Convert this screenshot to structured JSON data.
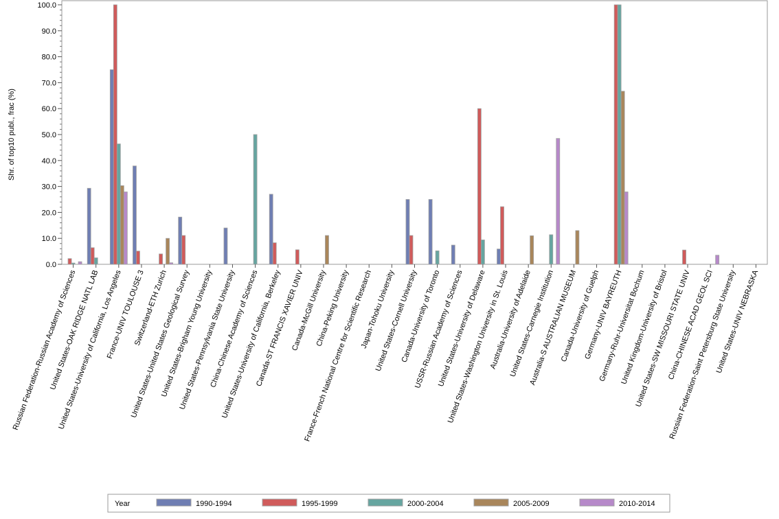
{
  "chart_data": {
    "type": "bar",
    "title": "",
    "xlabel": "",
    "ylabel": "Shr. of top10 publ., frac (%)",
    "ylim": [
      0,
      100
    ],
    "yticks": [
      "0.0",
      "10.0",
      "20.0",
      "30.0",
      "40.0",
      "50.0",
      "60.0",
      "70.0",
      "80.0",
      "90.0",
      "100.0"
    ],
    "grid": false,
    "legend_title": "Year",
    "legend_position": "bottom",
    "categories": [
      "Russian Federation-Russian Academy of Sciences",
      "United States-OAK RIDGE NATL LAB",
      "United States-University of California, Los Angeles",
      "France-UNIV TOULOUSE 3",
      "Switzerland-ETH Zurich",
      "United States-United States Geological Survey",
      "United States-Brigham Young University",
      "United States-Pennsylvania State University",
      "China-Chinese Academy of Sciences",
      "United States-University of California, Berkeley",
      "Canada-ST FRANCIS XAVIER UNIV",
      "Canada-McGill University",
      "China-Peking University",
      "France-French National Centre for Scientific Research",
      "Japan-Tohoku University",
      "United States-Cornell University",
      "Canada-University of Toronto",
      "USSR-Russian Academy of Sciences",
      "United States-University of Delaware",
      "United States-Washington University in St. Louis",
      "Australia-University of Adelaide",
      "United States-Carnegie Institution",
      "Australia-S AUSTRALIAN MUSEUM",
      "Canada-University of Guelph",
      "Germany-UNIV BAYREUTH",
      "Germany-Ruhr-Universitat Bochum",
      "United Kingdom-University of Bristol",
      "United States-SW MISSOURI STATE UNIV",
      "China-CHINESE ACAD GEOL SCI",
      "Russian Federation-Saint Petersburg State University",
      "United States-UNIV NEBRASKA"
    ],
    "series": [
      {
        "name": "1990-1994",
        "color": "#6f7eb3",
        "values": [
          0,
          29.3,
          75,
          37.9,
          0,
          18.2,
          0,
          14,
          0,
          27,
          0,
          0,
          0,
          0,
          0,
          25,
          25,
          7.4,
          0,
          5.9,
          0,
          0,
          0,
          0,
          0,
          0,
          0,
          0,
          0,
          0,
          0
        ]
      },
      {
        "name": "1995-1999",
        "color": "#d05b5b",
        "values": [
          2.2,
          6.4,
          100,
          5.1,
          4,
          11.1,
          0,
          0,
          0,
          8.3,
          5.6,
          0,
          0,
          0,
          0,
          11.1,
          0,
          0,
          60,
          22.2,
          0,
          0,
          0,
          0,
          100,
          0,
          0,
          5.5,
          0,
          0,
          0
        ]
      },
      {
        "name": "2000-2004",
        "color": "#66a5a0",
        "values": [
          0.5,
          2.5,
          46.4,
          0,
          0,
          0,
          0,
          0,
          50,
          0,
          0,
          0,
          0,
          0,
          0,
          0,
          5.2,
          0,
          9.4,
          0,
          0,
          11.4,
          0,
          0,
          100,
          0,
          0,
          0,
          0,
          0,
          0
        ]
      },
      {
        "name": "2005-2009",
        "color": "#a9865b",
        "values": [
          0,
          0,
          30.3,
          0,
          10,
          0,
          0,
          0,
          0,
          0,
          0,
          11.1,
          0,
          0,
          0,
          0,
          0,
          0,
          0,
          0,
          11,
          0,
          13,
          0,
          66.7,
          0,
          0,
          0,
          0,
          0,
          0
        ]
      },
      {
        "name": "2010-2014",
        "color": "#b689c9",
        "values": [
          1,
          0,
          27.9,
          0,
          0.6,
          0,
          0,
          0,
          0,
          0,
          0,
          0,
          0,
          0,
          0,
          0,
          0,
          0,
          0,
          0,
          0,
          48.5,
          0,
          0,
          27.9,
          0,
          0,
          0,
          3.5,
          0,
          0
        ]
      }
    ]
  }
}
